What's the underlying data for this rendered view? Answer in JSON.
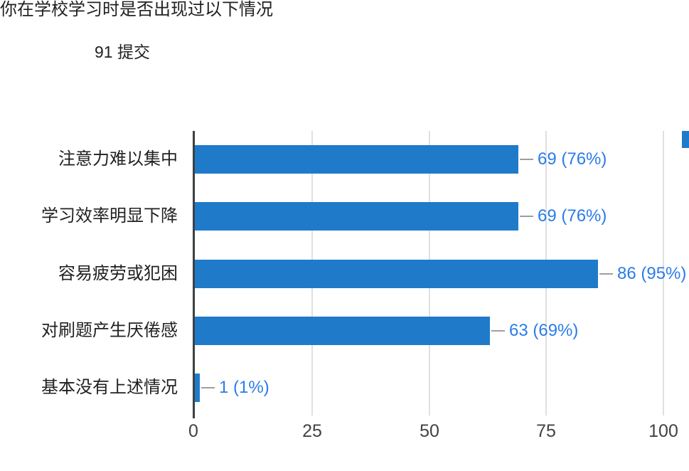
{
  "page": {
    "title": "你在学校学习时是否出现过以下情况",
    "submissions": "91 提交"
  },
  "chart_data": {
    "type": "bar",
    "orientation": "horizontal",
    "title": "你在学校学习时是否出现过以下情况",
    "subtitle": "91 提交",
    "total_submissions": 91,
    "categories": [
      "注意力难以集中",
      "学习效率明显下降",
      "容易疲劳或犯困",
      "对刷题产生厌倦感",
      "基本没有上述情况"
    ],
    "values": [
      69,
      69,
      86,
      63,
      1
    ],
    "percentages": [
      76,
      76,
      95,
      69,
      1
    ],
    "value_labels": [
      "69 (76%)",
      "69 (76%)",
      "86 (95%)",
      "63 (69%)",
      "1 (1%)"
    ],
    "x_ticks": [
      0,
      25,
      50,
      75,
      100
    ],
    "xlim": [
      0,
      100
    ],
    "grid": true,
    "legend_position": "top-right-cut-off",
    "colors": {
      "bar": "#1f7ac9",
      "value_label": "#2b7ce9",
      "gridline": "#e0e0e0",
      "axis": "#3c4043",
      "connector": "#9e9e9e",
      "tick_label": "#424242",
      "text": "#212121"
    }
  }
}
